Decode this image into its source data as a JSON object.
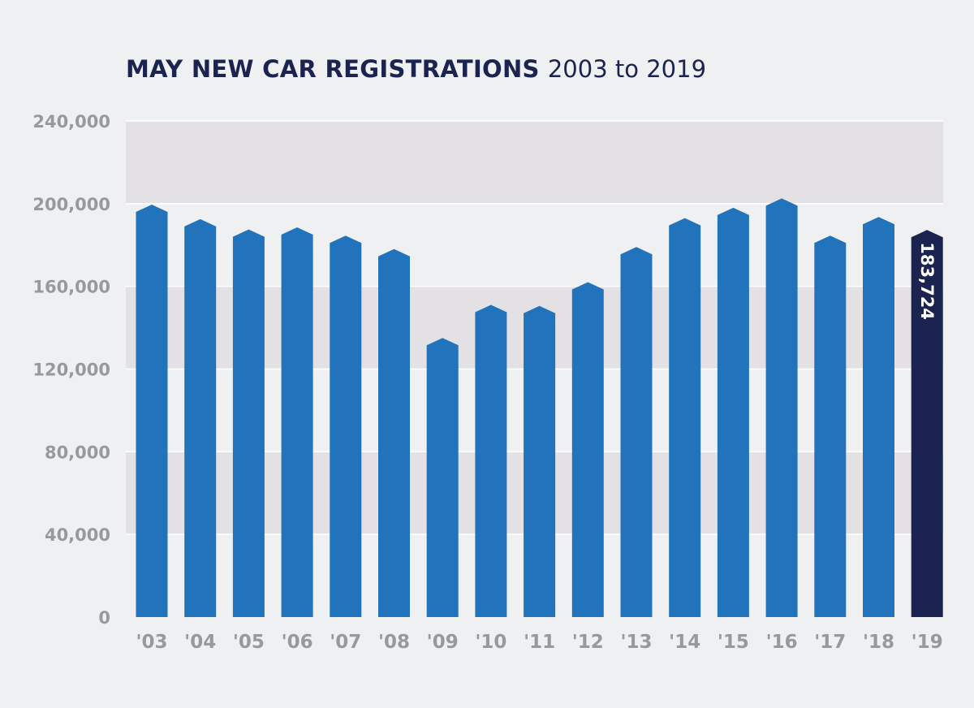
{
  "chart_data": {
    "type": "bar",
    "title": "MAY NEW CAR REGISTRATIONS",
    "subtitle": "2003 to 2019",
    "xlabel": "",
    "ylabel": "",
    "categories": [
      "'03",
      "'04",
      "'05",
      "'06",
      "'07",
      "'08",
      "'09",
      "'10",
      "'11",
      "'12",
      "'13",
      "'14",
      "'15",
      "'16",
      "'17",
      "'18",
      "'19"
    ],
    "values": [
      196000,
      189000,
      184000,
      185000,
      181000,
      174500,
      131500,
      147500,
      147000,
      158500,
      175500,
      189500,
      194500,
      199000,
      181000,
      190000,
      183724
    ],
    "ylim": [
      0,
      240000
    ],
    "yticks": [
      0,
      40000,
      80000,
      120000,
      160000,
      200000,
      240000
    ],
    "ytick_labels": [
      "0",
      "40,000",
      "80,000",
      "120,000",
      "160,000",
      "200,000",
      "240,000"
    ],
    "data_labels": [
      {
        "category": "'19",
        "text": "183,724"
      }
    ],
    "highlight_category": "'19",
    "colors": {
      "bar": "#2174bb",
      "highlight_bar": "#1b2350",
      "band": "#e3e1e3",
      "background": "#eff0f2",
      "tick_text": "#98999e",
      "title": "#1b2350"
    },
    "grid": true,
    "legend": "none"
  }
}
